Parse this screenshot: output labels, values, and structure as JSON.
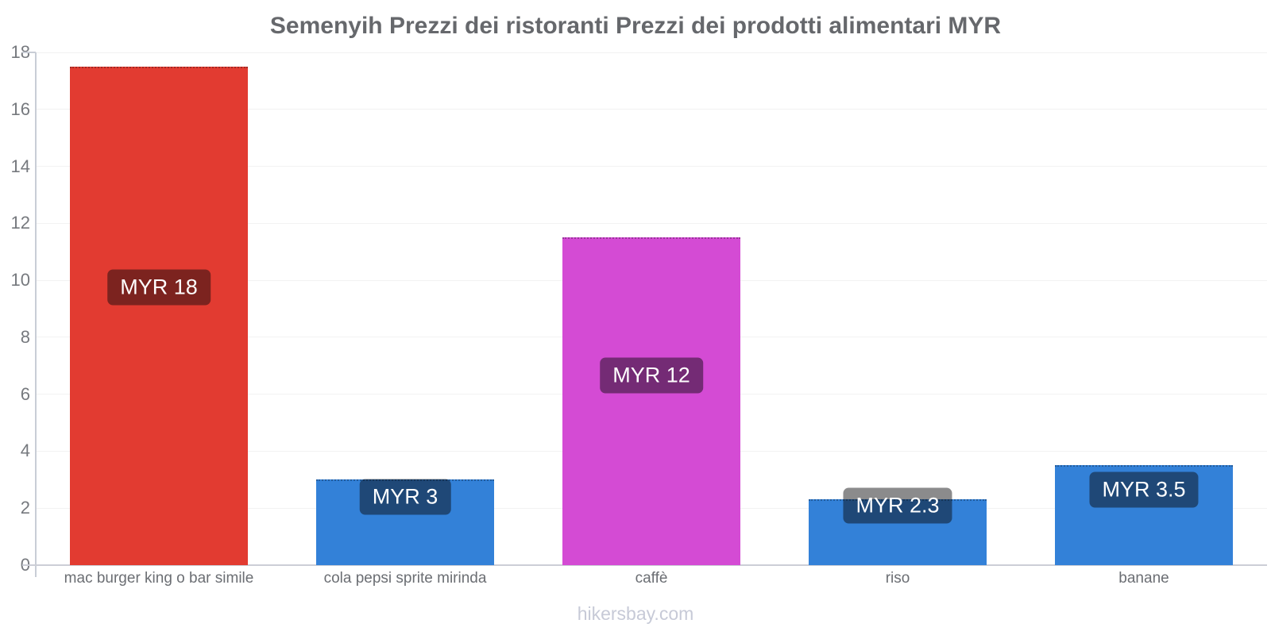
{
  "title": "Semenyih Prezzi dei ristoranti Prezzi dei prodotti alimentari MYR",
  "footer": "hikersbay.com",
  "chart_data": {
    "type": "bar",
    "title": "Semenyih Prezzi dei ristoranti Prezzi dei prodotti alimentari MYR",
    "currency": "MYR",
    "categories": [
      "mac burger king o bar simile",
      "cola pepsi sprite mirinda",
      "caffè",
      "riso",
      "banane"
    ],
    "values": [
      17.5,
      3,
      11.5,
      2.3,
      3.5
    ],
    "value_labels": [
      "MYR 18",
      "MYR 3",
      "MYR 12",
      "MYR 2.3",
      "MYR 3.5"
    ],
    "bar_colors": [
      "#e23b31",
      "#3381d8",
      "#d44bd4",
      "#3381d8",
      "#3381d8"
    ],
    "xlabel": "",
    "ylabel": "",
    "ylim": [
      0,
      18
    ],
    "yticks": [
      0,
      2,
      4,
      6,
      8,
      10,
      12,
      14,
      16,
      18
    ],
    "grid": true,
    "legend": false,
    "colors": {
      "restaurant_accent": "#e23b31",
      "grocery_blue": "#3381d8",
      "coffee_magenta": "#d44bd4",
      "label_pill_bg": "rgba(8,8,10,0.47)",
      "title_text": "#66686c",
      "axis_text": "#76797e",
      "watermark_text": "#c7cad7"
    }
  }
}
